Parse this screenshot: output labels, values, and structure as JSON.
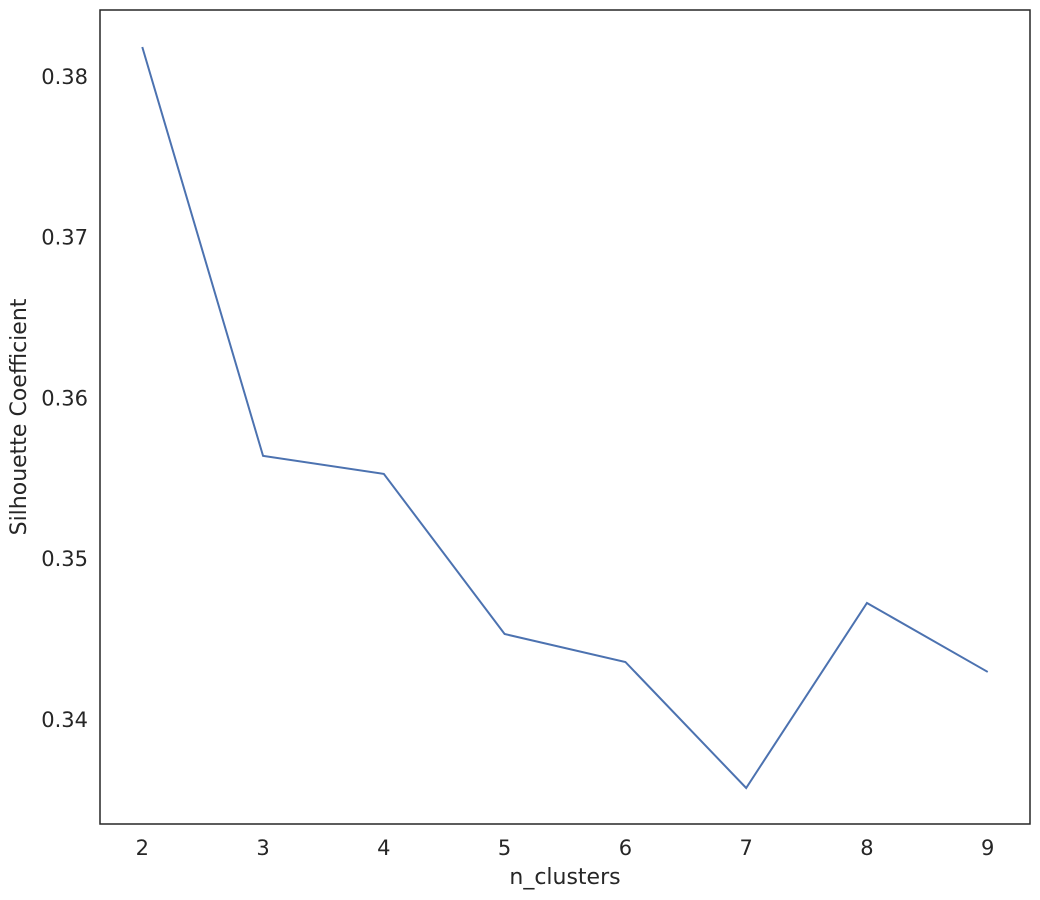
{
  "chart_data": {
    "type": "line",
    "x_label": "n_clusters",
    "y_label": "Silhouette Coefficient",
    "x": [
      2,
      3,
      4,
      5,
      6,
      7,
      8,
      9
    ],
    "series": [
      {
        "color": "#4c72b0",
        "values": [
          0.38193,
          0.35649,
          0.35537,
          0.34541,
          0.34367,
          0.33583,
          0.34734,
          0.34305
        ]
      }
    ],
    "xlim": [
      1.65,
      9.35
    ],
    "ylim": [
      0.33359,
      0.38423
    ],
    "xticks": [
      2,
      3,
      4,
      5,
      6,
      7,
      8,
      9
    ],
    "yticks": [
      0.34,
      0.35,
      0.36,
      0.37,
      0.38
    ],
    "grid": false
  }
}
